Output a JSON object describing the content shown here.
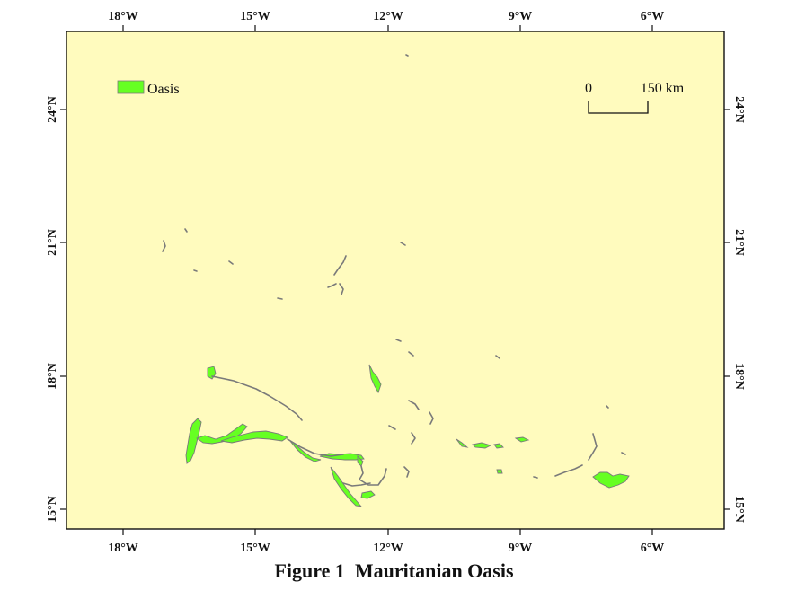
{
  "map": {
    "background_color": "#fffbbe",
    "frame_color": "#111111",
    "oasis_fill": "#66ff22",
    "oasis_stroke": "#7a7a7a",
    "x_ticks": [
      "18°W",
      "15°W",
      "12°W",
      "9°W",
      "6°W"
    ],
    "y_ticks": [
      "24°N",
      "21°N",
      "18°N",
      "15°N"
    ],
    "legend": {
      "label": "Oasis",
      "color": "#66ff22"
    },
    "scale_bar": {
      "start_label": "0",
      "end_label": "150 km"
    }
  },
  "caption": "Figure 1  Mauritanian Oasis"
}
